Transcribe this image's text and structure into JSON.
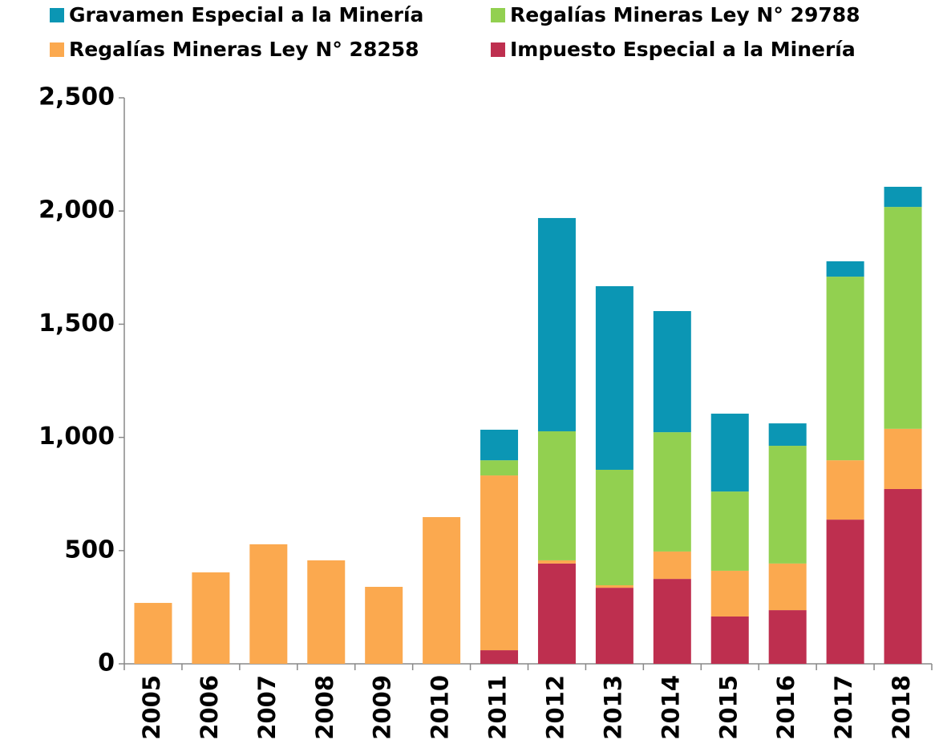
{
  "chart_data": {
    "type": "stacked_bar",
    "categories": [
      "2005",
      "2006",
      "2007",
      "2008",
      "2009",
      "2010",
      "2011",
      "2012",
      "2013",
      "2014",
      "2015",
      "2016",
      "2017",
      "2018"
    ],
    "series": [
      {
        "name": "Impuesto Especial a la Minería",
        "color": "#be2f4f",
        "values": [
          null,
          null,
          null,
          null,
          null,
          null,
          60,
          443,
          336,
          375,
          209,
          237,
          637,
          772
        ]
      },
      {
        "name": "Regalías Mineras Ley N° 28258",
        "color": "#fba94f",
        "values": [
          269,
          404,
          528,
          457,
          340,
          648,
          772,
          14,
          11,
          121,
          202,
          206,
          262,
          266
        ]
      },
      {
        "name": "Regalías Mineras  Ley N° 29788",
        "color": "#92d050",
        "values": [
          null,
          null,
          null,
          null,
          null,
          null,
          67,
          570,
          510,
          527,
          350,
          520,
          811,
          980
        ]
      },
      {
        "name": "Gravamen Especial a la Minería",
        "color": "#0b96b4",
        "values": [
          null,
          null,
          null,
          null,
          null,
          null,
          135,
          942,
          811,
          535,
          344,
          99,
          68,
          89
        ]
      }
    ],
    "legend_order": [
      3,
      2,
      1,
      0
    ],
    "ylim": [
      0,
      2500
    ],
    "yticks": [
      0,
      {
        "value": 500,
        "label": "500"
      },
      {
        "value": 1000,
        "label": "1,000"
      },
      {
        "value": 1500,
        "label": "1,500"
      },
      {
        "value": 2000,
        "label": "2,000"
      },
      {
        "value": 2500,
        "label": "2,500"
      }
    ]
  }
}
